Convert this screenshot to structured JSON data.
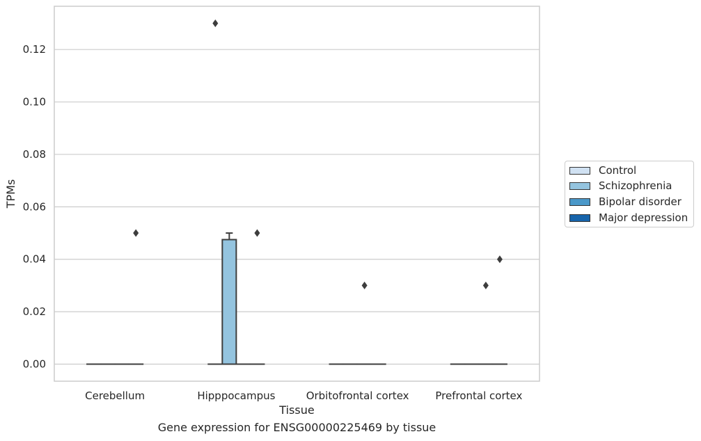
{
  "chart_data": {
    "type": "box",
    "ylabel": "TPMs",
    "xlabel": "Tissue",
    "caption": "Gene expression for ENSG00000225469 by tissue",
    "ylim": [
      -0.0065,
      0.1365
    ],
    "yticks": [
      "0.00",
      "0.02",
      "0.04",
      "0.06",
      "0.08",
      "0.10",
      "0.12"
    ],
    "ytick_values": [
      0,
      0.02,
      0.04,
      0.06,
      0.08,
      0.1,
      0.12
    ],
    "grid": "horizontal",
    "legend_placement": "right",
    "categories": [
      "Cerebellum",
      "Hipppocampus",
      "Orbitofrontal cortex",
      "Prefrontal cortex"
    ],
    "series": [
      {
        "name": "Control",
        "color": "#d0e1f2",
        "boxes": [
          {
            "q1": 0,
            "median": 0,
            "q3": 0,
            "whisker_low": 0,
            "whisker_high": 0,
            "outliers": []
          },
          {
            "q1": 0,
            "median": 0,
            "q3": 0,
            "whisker_low": 0,
            "whisker_high": 0,
            "outliers": [
              0.13
            ]
          },
          {
            "q1": 0,
            "median": 0,
            "q3": 0,
            "whisker_low": 0,
            "whisker_high": 0,
            "outliers": []
          },
          {
            "q1": 0,
            "median": 0,
            "q3": 0,
            "whisker_low": 0,
            "whisker_high": 0,
            "outliers": []
          }
        ]
      },
      {
        "name": "Schizophrenia",
        "color": "#94c4df",
        "boxes": [
          {
            "q1": 0,
            "median": 0,
            "q3": 0,
            "whisker_low": 0,
            "whisker_high": 0,
            "outliers": []
          },
          {
            "q1": 0,
            "median": 0,
            "q3": 0.0475,
            "whisker_low": 0,
            "whisker_high": 0.05,
            "outliers": []
          },
          {
            "q1": 0,
            "median": 0,
            "q3": 0,
            "whisker_low": 0,
            "whisker_high": 0,
            "outliers": []
          },
          {
            "q1": 0,
            "median": 0,
            "q3": 0,
            "whisker_low": 0,
            "whisker_high": 0,
            "outliers": []
          }
        ]
      },
      {
        "name": "Bipolar disorder",
        "color": "#4a98c9",
        "boxes": [
          {
            "q1": 0,
            "median": 0,
            "q3": 0,
            "whisker_low": 0,
            "whisker_high": 0,
            "outliers": []
          },
          {
            "q1": 0,
            "median": 0,
            "q3": 0,
            "whisker_low": 0,
            "whisker_high": 0,
            "outliers": []
          },
          {
            "q1": 0,
            "median": 0,
            "q3": 0,
            "whisker_low": 0,
            "whisker_high": 0,
            "outliers": [
              0.03
            ]
          },
          {
            "q1": 0,
            "median": 0,
            "q3": 0,
            "whisker_low": 0,
            "whisker_high": 0,
            "outliers": [
              0.03
            ]
          }
        ]
      },
      {
        "name": "Major depression",
        "color": "#1764ab",
        "boxes": [
          {
            "q1": 0,
            "median": 0,
            "q3": 0,
            "whisker_low": 0,
            "whisker_high": 0,
            "outliers": [
              0.05
            ]
          },
          {
            "q1": 0,
            "median": 0,
            "q3": 0,
            "whisker_low": 0,
            "whisker_high": 0,
            "outliers": [
              0.05
            ]
          },
          {
            "q1": 0,
            "median": 0,
            "q3": 0,
            "whisker_low": 0,
            "whisker_high": 0,
            "outliers": []
          },
          {
            "q1": 0,
            "median": 0,
            "q3": 0,
            "whisker_low": 0,
            "whisker_high": 0,
            "outliers": [
              0.04
            ]
          }
        ]
      }
    ]
  }
}
